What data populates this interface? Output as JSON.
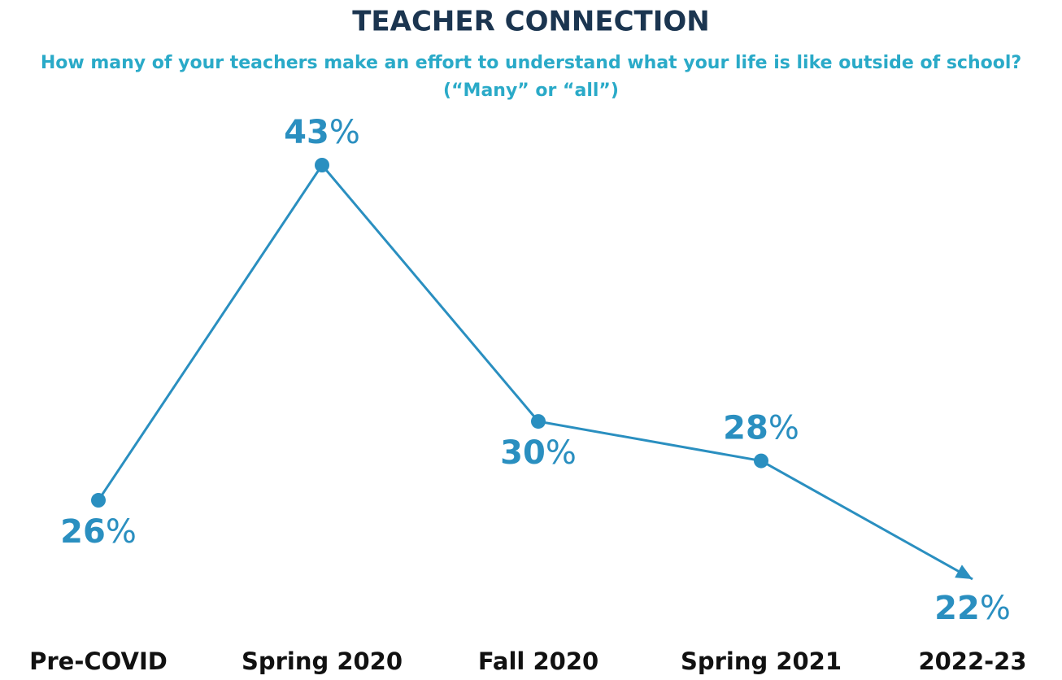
{
  "chart_data": {
    "type": "line",
    "title": "TEACHER CONNECTION",
    "subtitle": [
      "How many of your teachers make an effort to understand what your life is like outside of school?",
      "(“Many” or “all”)"
    ],
    "categories": [
      "Pre-COVID",
      "Spring 2020",
      "Fall 2020",
      "Spring 2021",
      "2022-23"
    ],
    "values": [
      26,
      43,
      30,
      28,
      22
    ],
    "value_labels": [
      "26%",
      "43%",
      "30%",
      "28%",
      "22%"
    ],
    "color": "#2a8fc0"
  }
}
